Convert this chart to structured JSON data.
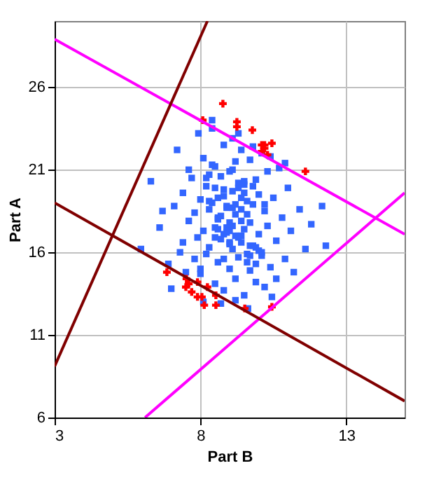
{
  "chart_data": {
    "type": "scatter",
    "xlabel": "Part B",
    "ylabel": "Part A",
    "xlim": [
      3,
      15
    ],
    "ylim": [
      6,
      30
    ],
    "xticks": [
      3,
      8,
      13
    ],
    "yticks": [
      6,
      11,
      16,
      21,
      26
    ],
    "grid": true,
    "series": [
      {
        "type": "scatter",
        "marker": "square",
        "color": "#3366ff",
        "x": [
          5.96,
          6.3,
          6.6,
          6.9,
          7.1,
          7.2,
          7.4,
          7.4,
          7.5,
          7.6,
          7.6,
          7.7,
          7.8,
          7.8,
          7.9,
          7.93,
          8.0,
          8.0,
          8.1,
          8.1,
          8.2,
          8.2,
          8.3,
          8.3,
          8.4,
          8.4,
          8.5,
          8.5,
          8.5,
          8.6,
          8.6,
          8.7,
          8.7,
          8.8,
          8.8,
          8.8,
          8.9,
          8.9,
          9.0,
          9.0,
          9.0,
          9.1,
          9.1,
          9.1,
          9.2,
          9.2,
          9.2,
          9.3,
          9.3,
          9.3,
          9.4,
          9.4,
          9.4,
          9.5,
          9.5,
          9.5,
          9.6,
          9.6,
          9.7,
          9.7,
          9.7,
          9.8,
          9.8,
          9.9,
          9.9,
          10.0,
          10.0,
          10.1,
          10.1,
          10.2,
          10.2,
          10.3,
          10.3,
          10.4,
          10.45,
          10.5,
          10.6,
          10.7,
          10.8,
          10.9,
          11.0,
          11.1,
          11.2,
          11.4,
          11.6,
          12.17,
          12.3,
          9.63,
          8.7,
          9.2,
          8.1,
          10.6,
          7.3,
          9.8,
          8.4,
          6.7,
          7.0,
          11.8,
          10.9,
          9.3,
          8.6,
          8.9,
          9.1,
          9.4,
          9.6,
          8.3,
          8.8,
          9.0,
          9.3,
          9.5,
          9.8,
          8.5,
          8.7,
          9.2,
          9.6,
          10.0,
          8.2,
          8.9,
          9.1,
          9.4,
          9.9,
          8.6,
          9.0,
          9.3,
          9.7,
          10.2,
          8.4,
          8.8,
          9.2,
          9.5,
          8.0,
          10.4,
          9.0,
          8.6,
          9.7,
          9.9,
          8.3,
          10.1,
          9.1,
          8.8,
          9.4,
          8.5
        ],
        "values": [
          16.2,
          20.3,
          17.5,
          15.3,
          18.8,
          22.2,
          16.6,
          19.6,
          14.8,
          21.0,
          17.9,
          20.5,
          15.6,
          18.4,
          16.9,
          23.2,
          19.2,
          14.7,
          21.7,
          17.3,
          15.9,
          20.0,
          18.6,
          16.3,
          23.5,
          19.0,
          14.1,
          17.5,
          21.2,
          18.1,
          15.4,
          20.6,
          16.8,
          19.4,
          13.7,
          22.5,
          17.2,
          18.8,
          15.0,
          20.9,
          17.8,
          19.7,
          16.2,
          22.9,
          18.3,
          14.4,
          21.5,
          17.0,
          19.9,
          15.7,
          18.6,
          16.6,
          22.2,
          20.3,
          17.4,
          13.4,
          19.1,
          15.9,
          21.6,
          17.8,
          14.9,
          18.9,
          16.4,
          20.4,
          15.3,
          19.5,
          17.1,
          22.0,
          16.0,
          18.5,
          13.9,
          20.9,
          17.6,
          15.1,
          13.3,
          19.3,
          16.7,
          21.1,
          18.1,
          15.6,
          19.9,
          17.3,
          14.8,
          18.6,
          16.2,
          18.8,
          16.4,
          12.6,
          12.9,
          13.1,
          13.0,
          14.4,
          16.0,
          22.4,
          24.0,
          18.5,
          13.8,
          17.7,
          21.4,
          23.2,
          18.0,
          17.5,
          18.7,
          17.9,
          18.3,
          19.1,
          19.8,
          16.5,
          16.9,
          19.6,
          20.0,
          16.9,
          18.2,
          17.0,
          15.4,
          16.1,
          20.5,
          18.7,
          21.0,
          19.3,
          16.3,
          17.4,
          16.6,
          20.2,
          15.8,
          18.9,
          21.3,
          17.1,
          18.9,
          20.1,
          15.0,
          21.8,
          17.3,
          19.3,
          16.4,
          14.2,
          20.7,
          15.8,
          17.6,
          15.6,
          17.0,
          19.9
        ]
      },
      {
        "type": "scatter",
        "marker": "cross",
        "color": "#ff0000",
        "x": [
          8.77,
          8.08,
          9.25,
          9.25,
          9.78,
          10.1,
          10.2,
          10.45,
          10.1,
          10.2,
          10.3,
          11.6,
          6.85,
          7.52,
          7.6,
          7.5,
          7.9,
          7.7,
          8.24,
          7.9,
          8.05,
          8.13,
          8.53,
          8.53,
          9.52,
          10.45
        ],
        "values": [
          25.0,
          24.0,
          23.9,
          23.6,
          23.4,
          22.5,
          22.5,
          22.6,
          22.1,
          22.3,
          21.9,
          20.9,
          14.8,
          14.4,
          14.1,
          13.9,
          14.2,
          13.6,
          13.9,
          13.3,
          13.3,
          12.8,
          13.4,
          12.8,
          12.6,
          12.7
        ]
      },
      {
        "type": "line",
        "color": "#ff00ff",
        "x": [
          3,
          15
        ],
        "values": [
          28.9,
          17.1
        ]
      },
      {
        "type": "line",
        "color": "#ff00ff",
        "x": [
          6.1,
          15
        ],
        "values": [
          6,
          19.6
        ]
      },
      {
        "type": "line",
        "color": "#800000",
        "x": [
          3,
          8.24
        ],
        "values": [
          9.1,
          30
        ]
      },
      {
        "type": "line",
        "color": "#800000",
        "x": [
          3,
          15
        ],
        "values": [
          19.0,
          7.0
        ]
      }
    ]
  }
}
